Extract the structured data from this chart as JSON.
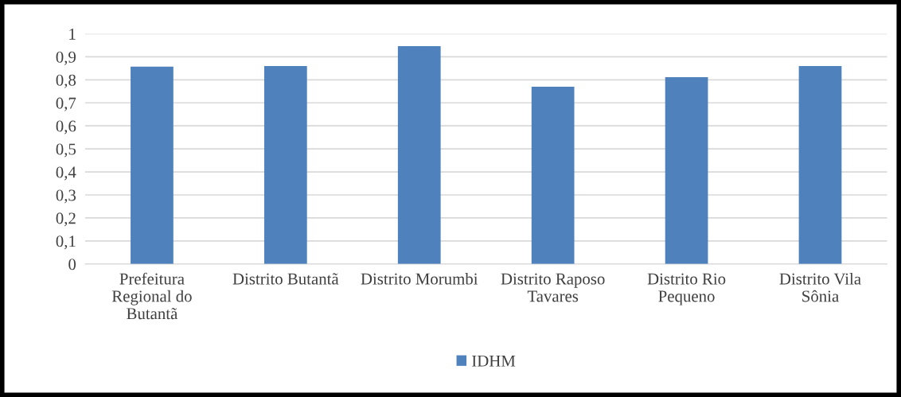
{
  "chart_data": {
    "type": "bar",
    "categories": [
      "Prefeitura Regional do Butantã",
      "Distrito Butantã",
      "Distrito Morumbi",
      "Distrito Raposo Tavares",
      "Distrito Rio Pequeno",
      "Distrito Vila Sônia"
    ],
    "series": [
      {
        "name": "IDHM",
        "color": "#4f81bd",
        "values": [
          0.857,
          0.86,
          0.946,
          0.77,
          0.811,
          0.86
        ]
      }
    ],
    "ylim": [
      0,
      1
    ],
    "yticks": [
      0,
      {
        "value": 0.1,
        "label": "0,1"
      },
      {
        "value": 0.2,
        "label": "0,2"
      },
      {
        "value": 0.3,
        "label": "0,3"
      },
      {
        "value": 0.4,
        "label": "0,4"
      },
      {
        "value": 0.5,
        "label": "0,5"
      },
      {
        "value": 0.6,
        "label": "0,6"
      },
      {
        "value": 0.7,
        "label": "0,7"
      },
      {
        "value": 0.8,
        "label": "0,8"
      },
      {
        "value": 0.9,
        "label": "0,9"
      },
      1
    ],
    "grid": "y",
    "legend": "bottom"
  }
}
